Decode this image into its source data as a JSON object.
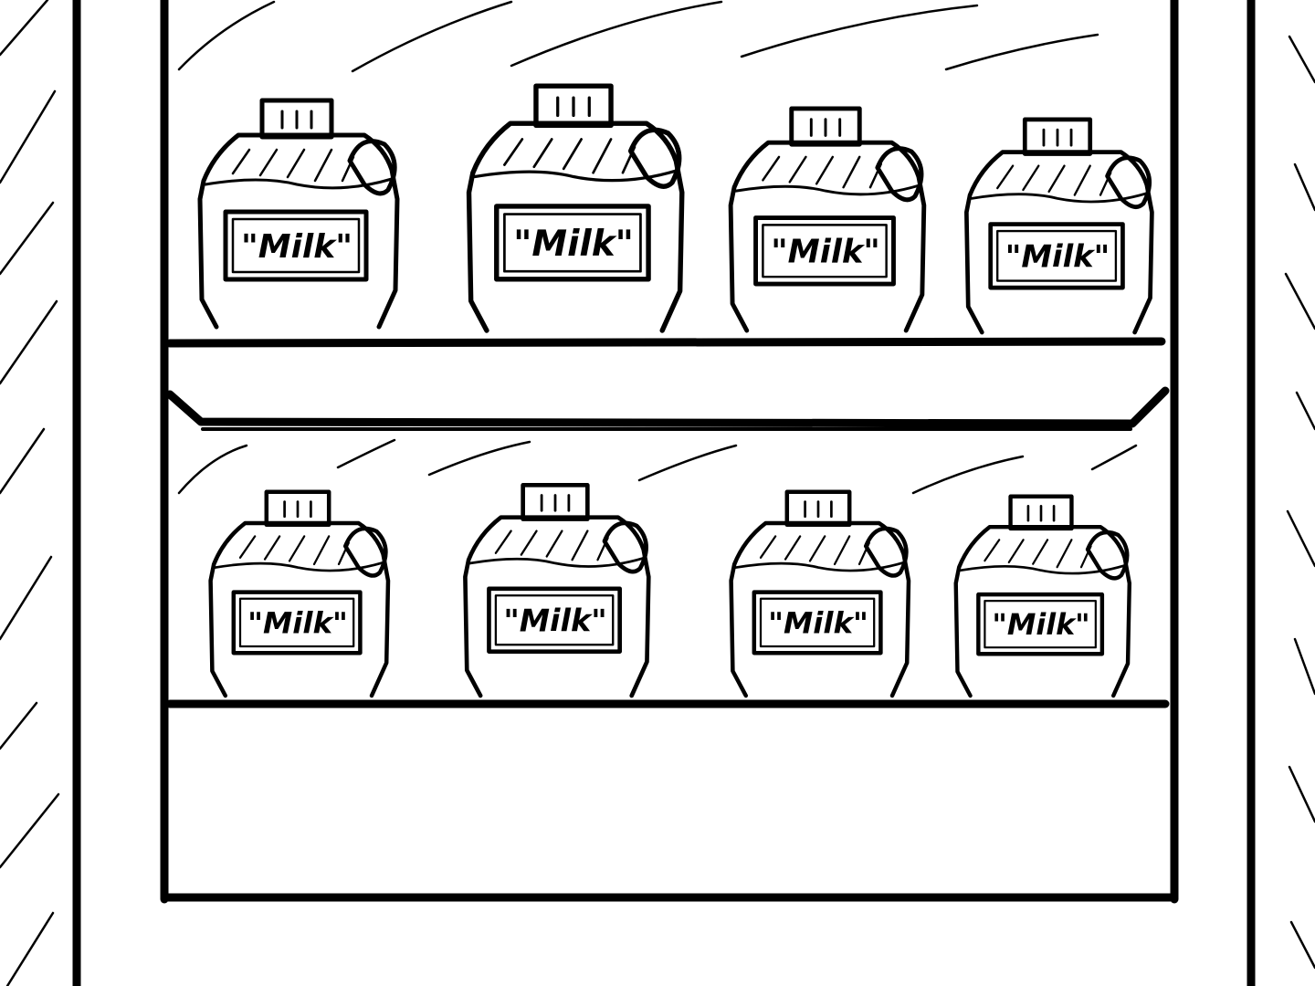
{
  "illustration": {
    "style": "black-and-white line drawing",
    "colors": {
      "ink": "#000000",
      "paper": "#ffffff"
    },
    "shelves": [
      {
        "position": "upper",
        "jugs": [
          {
            "label": "\"Milk\""
          },
          {
            "label": "\"Milk\""
          },
          {
            "label": "\"Milk\""
          },
          {
            "label": "\"Milk\""
          }
        ]
      },
      {
        "position": "lower",
        "jugs": [
          {
            "label": "\"Milk\""
          },
          {
            "label": "\"Milk\""
          },
          {
            "label": "\"Milk\""
          },
          {
            "label": "\"Milk\""
          }
        ]
      }
    ]
  }
}
